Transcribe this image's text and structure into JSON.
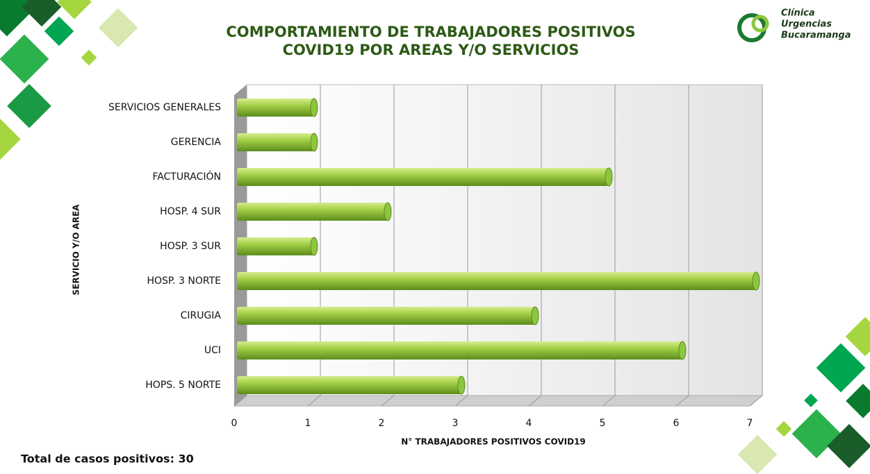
{
  "title": [
    "COMPORTAMIENTO DE TRABAJADORES POSITIVOS",
    "COVID19 POR AREAS Y/O SERVICIOS"
  ],
  "logo": [
    "Clínica",
    "Urgencias",
    "Bucaramanga"
  ],
  "footer": "Total de casos positivos: 30",
  "chart_data": {
    "type": "bar",
    "orientation": "horizontal",
    "x_label": "N° TRABAJADORES POSITIVOS COVID19",
    "y_label": "SERVICIO Y/O AREA",
    "categories": [
      "SERVICIOS GENERALES",
      "GERENCIA",
      "FACTURACIÓN",
      "HOSP. 4 SUR",
      "HOSP. 3 SUR",
      "HOSP. 3 NORTE",
      "CIRUGIA",
      "UCI",
      "HOPS. 5 NORTE"
    ],
    "values": [
      1,
      1,
      5,
      2,
      1,
      7,
      4,
      6,
      3
    ],
    "color": "#8dc63f",
    "xlim": [
      0,
      7
    ],
    "xticks": [
      0,
      1,
      2,
      3,
      4,
      5,
      6,
      7
    ],
    "grid": true
  }
}
